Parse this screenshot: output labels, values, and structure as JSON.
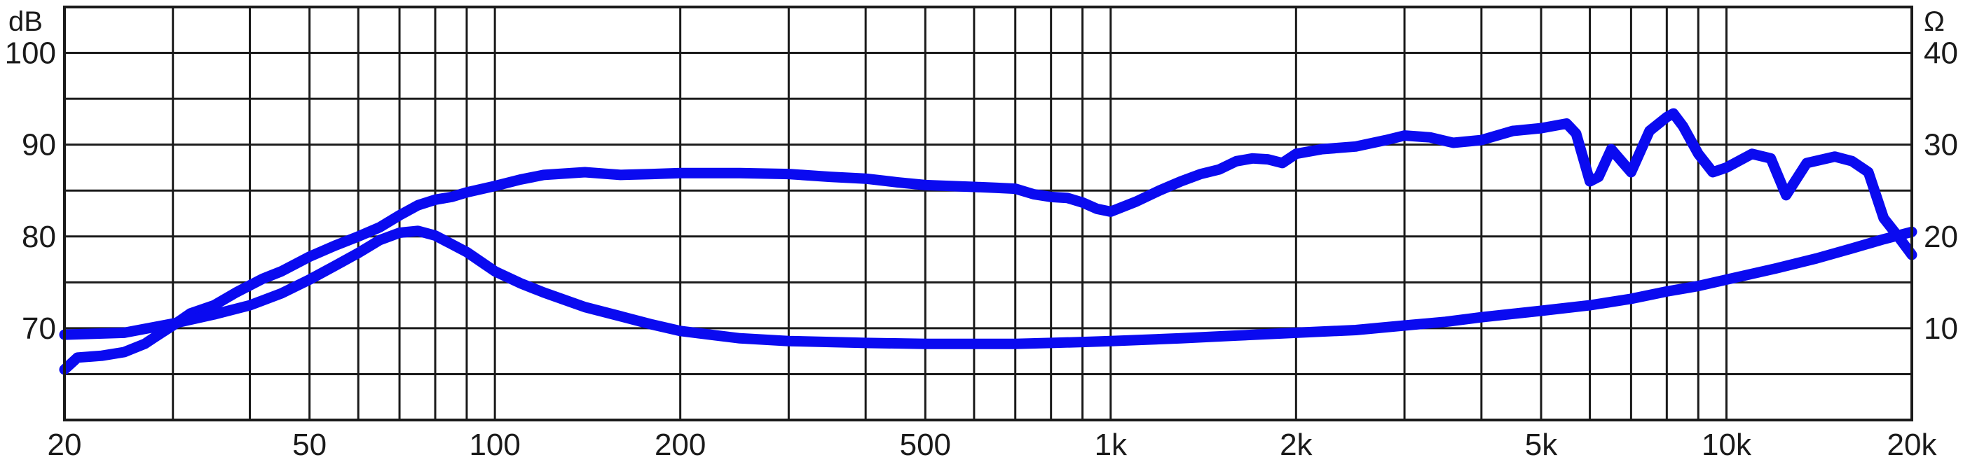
{
  "chart_data": {
    "type": "line",
    "title": "",
    "xlabel": "",
    "x_scale": "log",
    "xlim": [
      20,
      20000
    ],
    "x_ticks": [
      {
        "value": 20,
        "label": "20"
      },
      {
        "value": 50,
        "label": "50"
      },
      {
        "value": 100,
        "label": "100"
      },
      {
        "value": 200,
        "label": "200"
      },
      {
        "value": 500,
        "label": "500"
      },
      {
        "value": 1000,
        "label": "1k"
      },
      {
        "value": 2000,
        "label": "2k"
      },
      {
        "value": 5000,
        "label": "5k"
      },
      {
        "value": 10000,
        "label": "10k"
      },
      {
        "value": 20000,
        "label": "20k"
      }
    ],
    "y_left": {
      "unit": "dB",
      "lim": [
        60,
        105
      ],
      "ticks": [
        {
          "value": 70,
          "label": "70"
        },
        {
          "value": 80,
          "label": "80"
        },
        {
          "value": 90,
          "label": "90"
        },
        {
          "value": 100,
          "label": "100"
        }
      ]
    },
    "y_right": {
      "unit": "Ω",
      "lim": [
        0,
        45
      ],
      "ticks": [
        {
          "value": 10,
          "label": "10"
        },
        {
          "value": 20,
          "label": "20"
        },
        {
          "value": 30,
          "label": "30"
        },
        {
          "value": 40,
          "label": "40"
        }
      ]
    },
    "grid": true,
    "line_color": "#0a0af0",
    "series": [
      {
        "axis": "left",
        "points": [
          [
            20,
            65.5
          ],
          [
            21,
            66.8
          ],
          [
            23,
            67
          ],
          [
            25,
            67.4
          ],
          [
            27,
            68.3
          ],
          [
            28,
            69
          ],
          [
            30,
            70.3
          ],
          [
            32,
            71.6
          ],
          [
            35,
            72.5
          ],
          [
            38,
            73.9
          ],
          [
            42,
            75.4
          ],
          [
            45,
            76.2
          ],
          [
            50,
            77.8
          ],
          [
            55,
            79
          ],
          [
            60,
            80
          ],
          [
            65,
            81
          ],
          [
            70,
            82.3
          ],
          [
            75,
            83.4
          ],
          [
            80,
            84
          ],
          [
            85,
            84.3
          ],
          [
            90,
            84.8
          ],
          [
            100,
            85.5
          ],
          [
            110,
            86.2
          ],
          [
            120,
            86.7
          ],
          [
            140,
            87
          ],
          [
            160,
            86.7
          ],
          [
            180,
            86.8
          ],
          [
            200,
            86.9
          ],
          [
            250,
            86.9
          ],
          [
            300,
            86.8
          ],
          [
            350,
            86.5
          ],
          [
            400,
            86.3
          ],
          [
            450,
            85.9
          ],
          [
            500,
            85.6
          ],
          [
            550,
            85.5
          ],
          [
            600,
            85.4
          ],
          [
            650,
            85.3
          ],
          [
            700,
            85.2
          ],
          [
            750,
            84.6
          ],
          [
            800,
            84.3
          ],
          [
            850,
            84.2
          ],
          [
            900,
            83.7
          ],
          [
            950,
            83
          ],
          [
            1000,
            82.7
          ],
          [
            1100,
            83.8
          ],
          [
            1200,
            85
          ],
          [
            1300,
            86
          ],
          [
            1400,
            86.8
          ],
          [
            1500,
            87.3
          ],
          [
            1600,
            88.2
          ],
          [
            1700,
            88.5
          ],
          [
            1800,
            88.4
          ],
          [
            1900,
            88
          ],
          [
            2000,
            89
          ],
          [
            2200,
            89.5
          ],
          [
            2500,
            89.8
          ],
          [
            2800,
            90.5
          ],
          [
            3000,
            91
          ],
          [
            3300,
            90.8
          ],
          [
            3600,
            90.2
          ],
          [
            4000,
            90.5
          ],
          [
            4500,
            91.5
          ],
          [
            5000,
            91.8
          ],
          [
            5500,
            92.3
          ],
          [
            5700,
            91.2
          ],
          [
            6000,
            86
          ],
          [
            6200,
            86.5
          ],
          [
            6500,
            89.5
          ],
          [
            7000,
            87
          ],
          [
            7500,
            91.5
          ],
          [
            8000,
            93
          ],
          [
            8200,
            93.4
          ],
          [
            8500,
            92
          ],
          [
            9000,
            89
          ],
          [
            9500,
            87
          ],
          [
            10000,
            87.5
          ],
          [
            11000,
            89
          ],
          [
            11800,
            88.5
          ],
          [
            12500,
            84.5
          ],
          [
            13500,
            88
          ],
          [
            15000,
            88.7
          ],
          [
            16000,
            88.2
          ],
          [
            17000,
            87
          ],
          [
            18000,
            82
          ],
          [
            19000,
            80
          ],
          [
            20000,
            78
          ]
        ]
      },
      {
        "axis": "right",
        "points": [
          [
            20,
            9.3
          ],
          [
            25,
            9.5
          ],
          [
            30,
            10.5
          ],
          [
            35,
            11.5
          ],
          [
            40,
            12.5
          ],
          [
            45,
            13.8
          ],
          [
            50,
            15.3
          ],
          [
            55,
            16.8
          ],
          [
            60,
            18.2
          ],
          [
            65,
            19.6
          ],
          [
            70,
            20.4
          ],
          [
            75,
            20.6
          ],
          [
            80,
            20.1
          ],
          [
            90,
            18.3
          ],
          [
            100,
            16.2
          ],
          [
            110,
            14.9
          ],
          [
            120,
            13.9
          ],
          [
            140,
            12.3
          ],
          [
            160,
            11.3
          ],
          [
            180,
            10.4
          ],
          [
            200,
            9.7
          ],
          [
            250,
            8.9
          ],
          [
            300,
            8.6
          ],
          [
            400,
            8.4
          ],
          [
            500,
            8.3
          ],
          [
            600,
            8.3
          ],
          [
            700,
            8.3
          ],
          [
            800,
            8.4
          ],
          [
            900,
            8.5
          ],
          [
            1000,
            8.6
          ],
          [
            1300,
            8.9
          ],
          [
            1600,
            9.2
          ],
          [
            2000,
            9.5
          ],
          [
            2500,
            9.8
          ],
          [
            3000,
            10.3
          ],
          [
            3500,
            10.7
          ],
          [
            4000,
            11.2
          ],
          [
            5000,
            11.9
          ],
          [
            6000,
            12.5
          ],
          [
            7000,
            13.2
          ],
          [
            8000,
            14
          ],
          [
            9000,
            14.6
          ],
          [
            10000,
            15.3
          ],
          [
            12000,
            16.5
          ],
          [
            14000,
            17.6
          ],
          [
            16000,
            18.7
          ],
          [
            18000,
            19.7
          ],
          [
            20000,
            20.5
          ]
        ]
      }
    ]
  }
}
